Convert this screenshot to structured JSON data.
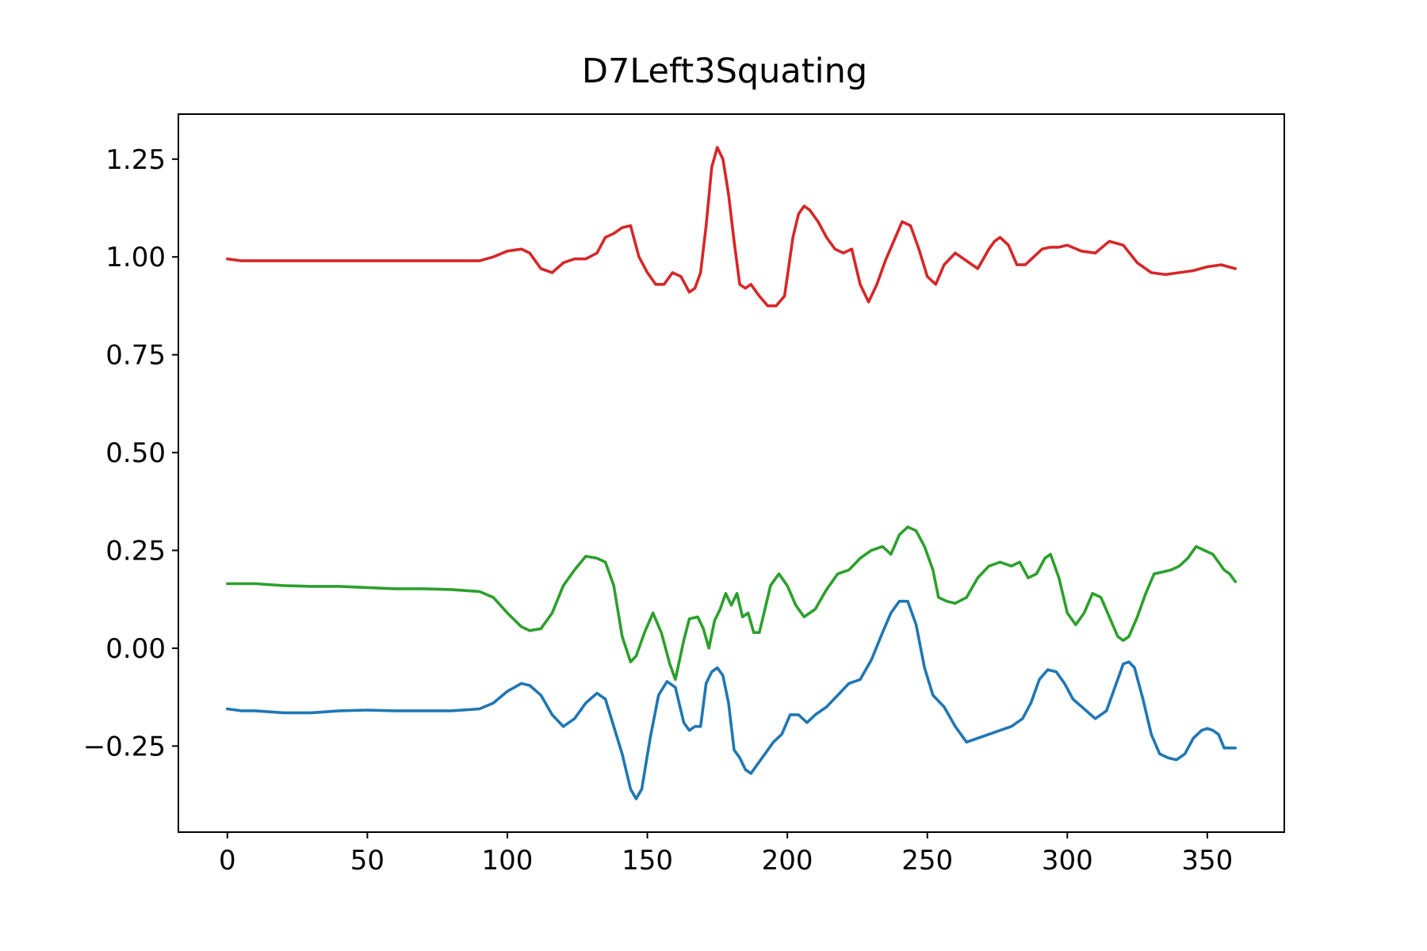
{
  "chart_data": {
    "type": "line",
    "title": "D7Left3Squating",
    "xlabel": "",
    "ylabel": "",
    "xlim": [
      -17.5,
      377.5
    ],
    "ylim": [
      -0.47,
      1.365
    ],
    "xticks": [
      0,
      50,
      100,
      150,
      200,
      250,
      300,
      350
    ],
    "xtick_labels": [
      "0",
      "50",
      "100",
      "150",
      "200",
      "250",
      "300",
      "350"
    ],
    "yticks": [
      -0.25,
      0.0,
      0.25,
      0.5,
      0.75,
      1.0,
      1.25
    ],
    "ytick_labels": [
      "−0.25",
      "0.00",
      "0.25",
      "0.50",
      "0.75",
      "1.00",
      "1.25"
    ],
    "grid": false,
    "series": [
      {
        "color": "#1f77b4",
        "x": [
          0,
          5,
          10,
          20,
          30,
          40,
          50,
          60,
          70,
          80,
          90,
          95,
          100,
          105,
          108,
          112,
          116,
          120,
          124,
          128,
          132,
          135,
          138,
          141,
          144,
          146,
          148,
          151,
          154,
          157,
          160,
          163,
          165,
          167,
          169,
          171,
          173,
          175,
          177,
          179,
          181,
          183,
          185,
          187,
          189,
          192,
          195,
          198,
          201,
          204,
          207,
          210,
          214,
          218,
          222,
          226,
          230,
          234,
          237,
          240,
          243,
          246,
          249,
          252,
          256,
          260,
          264,
          268,
          272,
          276,
          280,
          284,
          287,
          290,
          293,
          296,
          299,
          302,
          306,
          310,
          314,
          317,
          320,
          322,
          324,
          327,
          330,
          333,
          336,
          339,
          342,
          345,
          348,
          350,
          352,
          354,
          356,
          358,
          360
        ],
        "y": [
          -0.155,
          -0.16,
          -0.16,
          -0.165,
          -0.165,
          -0.16,
          -0.158,
          -0.16,
          -0.16,
          -0.16,
          -0.155,
          -0.14,
          -0.11,
          -0.09,
          -0.095,
          -0.12,
          -0.17,
          -0.2,
          -0.18,
          -0.14,
          -0.115,
          -0.13,
          -0.2,
          -0.27,
          -0.36,
          -0.385,
          -0.36,
          -0.23,
          -0.12,
          -0.085,
          -0.1,
          -0.19,
          -0.21,
          -0.2,
          -0.2,
          -0.09,
          -0.06,
          -0.05,
          -0.07,
          -0.14,
          -0.26,
          -0.28,
          -0.31,
          -0.32,
          -0.3,
          -0.27,
          -0.24,
          -0.22,
          -0.17,
          -0.17,
          -0.19,
          -0.17,
          -0.15,
          -0.12,
          -0.09,
          -0.08,
          -0.03,
          0.04,
          0.09,
          0.12,
          0.12,
          0.06,
          -0.05,
          -0.12,
          -0.15,
          -0.2,
          -0.24,
          -0.23,
          -0.22,
          -0.21,
          -0.2,
          -0.18,
          -0.14,
          -0.08,
          -0.055,
          -0.06,
          -0.09,
          -0.13,
          -0.155,
          -0.18,
          -0.16,
          -0.1,
          -0.04,
          -0.035,
          -0.05,
          -0.13,
          -0.22,
          -0.27,
          -0.28,
          -0.285,
          -0.27,
          -0.23,
          -0.21,
          -0.205,
          -0.21,
          -0.22,
          -0.255,
          -0.255,
          -0.255
        ]
      },
      {
        "color": "#2ca02c",
        "x": [
          0,
          5,
          10,
          20,
          30,
          40,
          50,
          60,
          70,
          80,
          90,
          95,
          100,
          105,
          108,
          112,
          116,
          120,
          124,
          128,
          132,
          135,
          138,
          141,
          144,
          146,
          149,
          152,
          155,
          158,
          160,
          163,
          165,
          168,
          170,
          172,
          174,
          176,
          178,
          180,
          182,
          184,
          186,
          188,
          190,
          192,
          194,
          197,
          200,
          203,
          206,
          210,
          214,
          218,
          222,
          226,
          230,
          234,
          237,
          240,
          243,
          246,
          249,
          252,
          254,
          257,
          260,
          264,
          268,
          272,
          276,
          280,
          283,
          286,
          289,
          292,
          294,
          297,
          300,
          303,
          306,
          309,
          312,
          315,
          318,
          320,
          322,
          325,
          328,
          331,
          334,
          337,
          340,
          343,
          346,
          349,
          352,
          354,
          356,
          358,
          360
        ],
        "y": [
          0.165,
          0.165,
          0.165,
          0.16,
          0.158,
          0.158,
          0.155,
          0.152,
          0.152,
          0.15,
          0.145,
          0.13,
          0.09,
          0.055,
          0.045,
          0.05,
          0.09,
          0.16,
          0.2,
          0.235,
          0.23,
          0.22,
          0.16,
          0.03,
          -0.035,
          -0.02,
          0.04,
          0.09,
          0.04,
          -0.04,
          -0.08,
          0.02,
          0.075,
          0.08,
          0.05,
          0.0,
          0.07,
          0.1,
          0.14,
          0.11,
          0.14,
          0.08,
          0.09,
          0.04,
          0.04,
          0.1,
          0.16,
          0.19,
          0.16,
          0.11,
          0.08,
          0.1,
          0.15,
          0.19,
          0.2,
          0.23,
          0.25,
          0.26,
          0.24,
          0.29,
          0.31,
          0.3,
          0.26,
          0.2,
          0.13,
          0.12,
          0.115,
          0.13,
          0.18,
          0.21,
          0.22,
          0.21,
          0.22,
          0.18,
          0.19,
          0.23,
          0.24,
          0.18,
          0.09,
          0.06,
          0.09,
          0.14,
          0.13,
          0.08,
          0.03,
          0.02,
          0.03,
          0.08,
          0.14,
          0.19,
          0.195,
          0.2,
          0.21,
          0.23,
          0.26,
          0.25,
          0.24,
          0.22,
          0.2,
          0.19,
          0.17
        ]
      },
      {
        "color": "#d62728",
        "x": [
          0,
          5,
          10,
          20,
          30,
          40,
          50,
          60,
          70,
          80,
          90,
          95,
          100,
          105,
          108,
          112,
          116,
          120,
          124,
          128,
          132,
          135,
          138,
          141,
          144,
          147,
          150,
          153,
          156,
          159,
          162,
          165,
          167,
          169,
          171,
          173,
          175,
          177,
          179,
          181,
          183,
          185,
          187,
          190,
          193,
          196,
          199,
          202,
          204,
          206,
          208,
          211,
          214,
          217,
          220,
          223,
          226,
          229,
          232,
          235,
          238,
          241,
          244,
          247,
          250,
          253,
          256,
          260,
          264,
          268,
          272,
          274,
          276,
          279,
          282,
          285,
          288,
          291,
          294,
          297,
          300,
          305,
          310,
          315,
          320,
          325,
          330,
          335,
          340,
          345,
          350,
          355,
          360
        ],
        "y": [
          0.995,
          0.99,
          0.99,
          0.99,
          0.99,
          0.99,
          0.99,
          0.99,
          0.99,
          0.99,
          0.99,
          1.0,
          1.015,
          1.02,
          1.01,
          0.97,
          0.96,
          0.985,
          0.995,
          0.995,
          1.01,
          1.05,
          1.06,
          1.075,
          1.08,
          1.0,
          0.96,
          0.93,
          0.93,
          0.96,
          0.95,
          0.91,
          0.92,
          0.96,
          1.08,
          1.23,
          1.28,
          1.25,
          1.16,
          1.04,
          0.93,
          0.92,
          0.93,
          0.9,
          0.875,
          0.875,
          0.9,
          1.05,
          1.11,
          1.13,
          1.12,
          1.09,
          1.05,
          1.02,
          1.01,
          1.02,
          0.93,
          0.885,
          0.93,
          0.99,
          1.04,
          1.09,
          1.08,
          1.02,
          0.95,
          0.93,
          0.98,
          1.01,
          0.99,
          0.97,
          1.02,
          1.04,
          1.05,
          1.03,
          0.98,
          0.98,
          1.0,
          1.02,
          1.025,
          1.025,
          1.03,
          1.015,
          1.01,
          1.04,
          1.03,
          0.985,
          0.96,
          0.955,
          0.96,
          0.965,
          0.975,
          0.98,
          0.97
        ]
      }
    ]
  }
}
